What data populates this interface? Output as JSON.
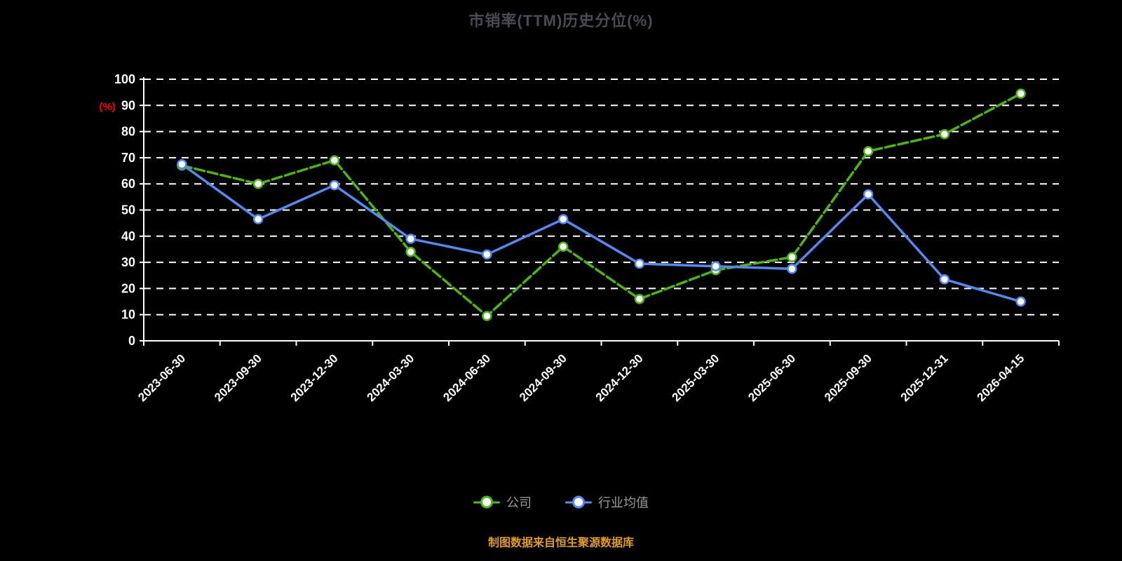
{
  "title": "市销率(TTM)历史分位(%)",
  "footer": "制图数据来自恒生聚源数据库",
  "chart_data": {
    "type": "line",
    "title": "市销率(TTM)历史分位(%)",
    "xlabel": "",
    "ylabel": "(%)",
    "ylabel_color": "#ff0000",
    "ylim": [
      0,
      100
    ],
    "yticks": [
      0,
      10,
      20,
      30,
      40,
      50,
      60,
      70,
      80,
      90,
      100
    ],
    "grid": true,
    "grid_style": "dashed",
    "legend_position": "bottom",
    "background_color": "#000000",
    "axis_color": "#ffffff",
    "categories": [
      "2023-06-30",
      "2023-09-30",
      "2023-12-30",
      "2024-03-30",
      "2024-06-30",
      "2024-09-30",
      "2024-12-30",
      "2025-03-30",
      "2025-06-30",
      "2025-09-30",
      "2025-12-31",
      "2026-04-15"
    ],
    "series": [
      {
        "name": "公司",
        "color": "#4cb417",
        "dashed": true,
        "values": [
          67,
          60,
          69,
          34,
          9.5,
          36,
          16,
          27,
          32,
          72.5,
          79,
          94.5
        ]
      },
      {
        "name": "行业均值",
        "color": "#5589ee",
        "dashed": false,
        "values": [
          67.5,
          46.5,
          59.5,
          39,
          33,
          46.5,
          29.5,
          28.5,
          27.5,
          56,
          23.5,
          15
        ]
      }
    ]
  }
}
